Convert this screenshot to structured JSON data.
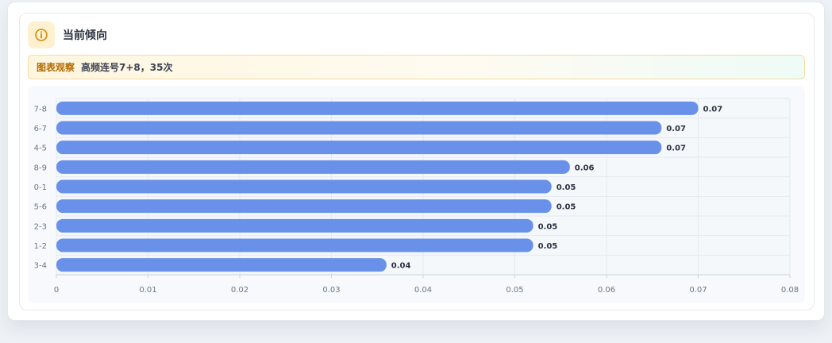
{
  "header": {
    "title": "当前倾向",
    "icon": "info-icon",
    "icon_color": "#d48806"
  },
  "observation": {
    "tag": "图表观察",
    "text": "高频连号7+8，35次"
  },
  "colors": {
    "bar": "#6a91ea",
    "grid": "#e3eaf1",
    "axis": "#c9d3de",
    "label": "#2b3240",
    "tick": "#6b7684"
  },
  "chart_data": {
    "type": "bar",
    "orientation": "horizontal",
    "categories": [
      "7-8",
      "6-7",
      "4-5",
      "8-9",
      "0-1",
      "5-6",
      "2-3",
      "1-2",
      "3-4"
    ],
    "values": [
      0.07,
      0.066,
      0.066,
      0.056,
      0.054,
      0.054,
      0.052,
      0.052,
      0.036
    ],
    "data_labels": [
      "0.07",
      "0.07",
      "0.07",
      "0.06",
      "0.05",
      "0.05",
      "0.05",
      "0.05",
      "0.04"
    ],
    "xlim": [
      0,
      0.08
    ],
    "x_ticks": [
      "0",
      "0.01",
      "0.02",
      "0.03",
      "0.04",
      "0.05",
      "0.06",
      "0.07",
      "0.08"
    ],
    "grid": true,
    "legend": "none",
    "title": "",
    "xlabel": "",
    "ylabel": ""
  }
}
